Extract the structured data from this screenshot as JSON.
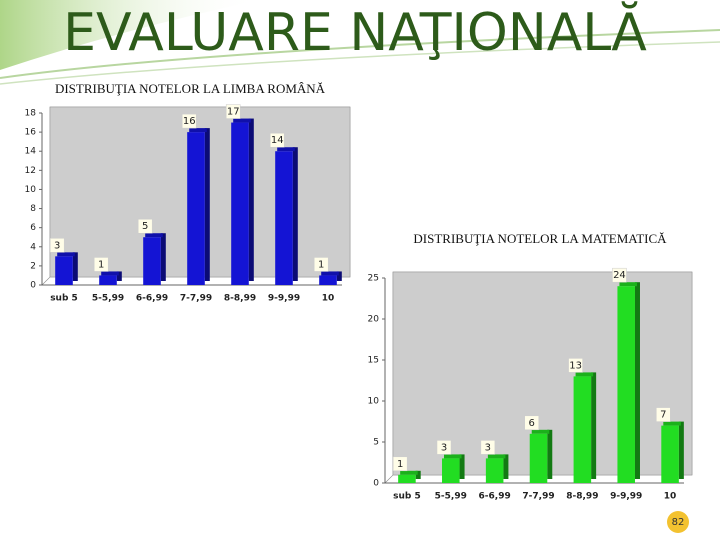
{
  "title": "EVALUARE NAŢIONALĂ",
  "page_number": "82",
  "chart_data": [
    {
      "type": "bar",
      "title": "DISTRIBUŢIA NOTELOR LA LIMBA ROMÂNĂ",
      "categories": [
        "sub 5",
        "5-5,99",
        "6-6,99",
        "7-7,99",
        "8-8,99",
        "9-9,99",
        "10"
      ],
      "values": [
        3,
        1,
        5,
        16,
        17,
        14,
        1
      ],
      "color": "#1414d4",
      "ylim": [
        0,
        18
      ],
      "yticks": [
        0,
        2,
        4,
        6,
        8,
        10,
        12,
        14,
        16,
        18
      ],
      "grid": false
    },
    {
      "type": "bar",
      "title": "DISTRIBUŢIA NOTELOR LA MATEMATICĂ",
      "categories": [
        "sub 5",
        "5-5,99",
        "6-6,99",
        "7-7,99",
        "8-8,99",
        "9-9,99",
        "10"
      ],
      "values": [
        1,
        3,
        3,
        6,
        13,
        24,
        7
      ],
      "color": "#22dd22",
      "ylim": [
        0,
        25
      ],
      "yticks": [
        0,
        5,
        10,
        15,
        20,
        25
      ],
      "grid": false
    }
  ]
}
